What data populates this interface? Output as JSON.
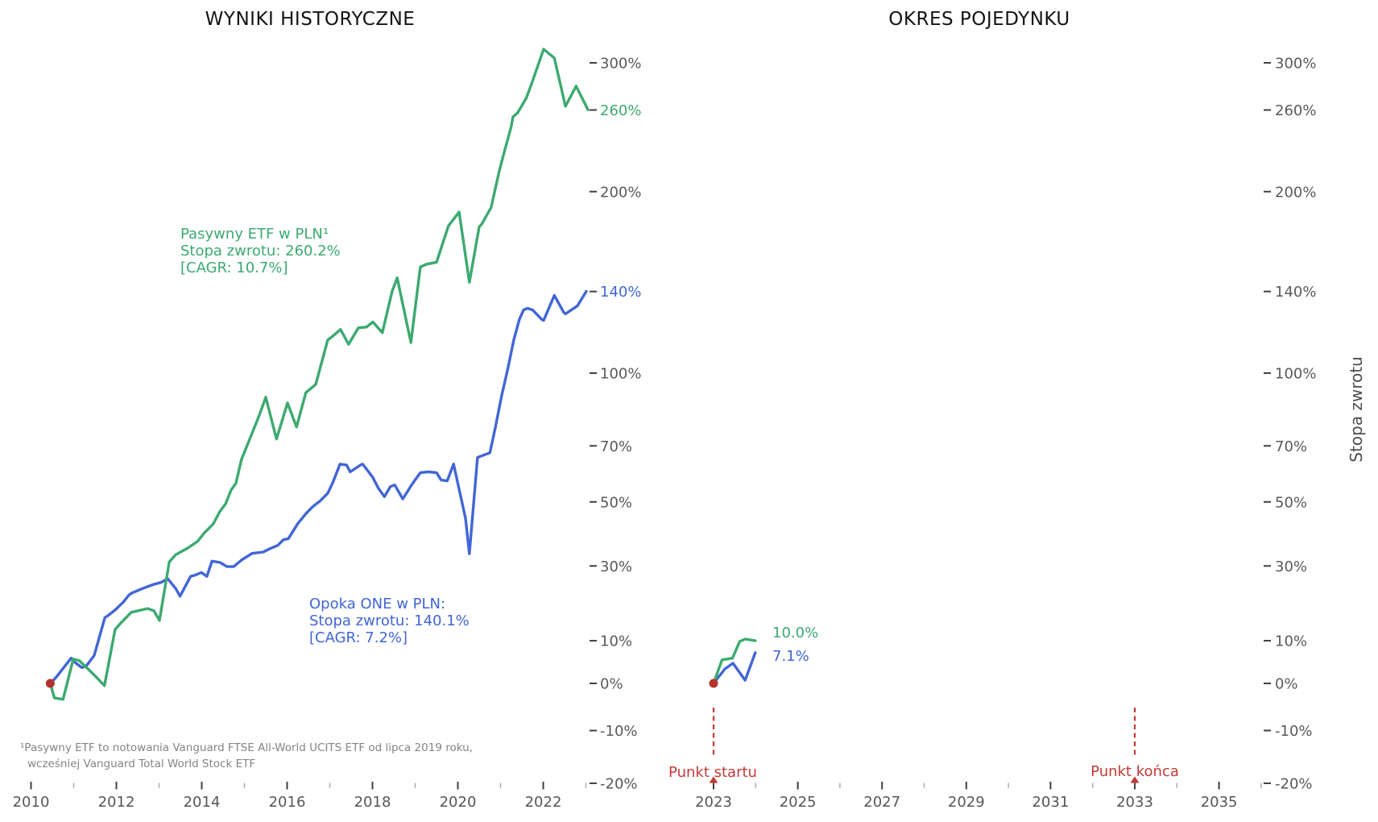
{
  "chart_data": [
    {
      "type": "line",
      "title": "WYNIKI HISTORYCZNE",
      "y_scale": "log10(1 + r/100), shared by both panels",
      "x_range": [
        2009.7,
        2023.3
      ],
      "y_range_pct": [
        -20.5,
        316
      ],
      "grid": false,
      "x_axis": {
        "major_ticks": [
          2010,
          2012,
          2014,
          2016,
          2018,
          2020,
          2022
        ],
        "major_labels": [
          "2010",
          "2012",
          "2014",
          "2016",
          "2018",
          "2020",
          "2022"
        ],
        "minor_ticks": [
          2011,
          2013,
          2015,
          2017,
          2019,
          2021,
          2023
        ]
      },
      "y_axis": {
        "side": "right",
        "ticks": [
          {
            "pct": 300,
            "label": "300%",
            "color": "#595959"
          },
          {
            "pct": 260,
            "label": "260%",
            "color": "#3caa70"
          },
          {
            "pct": 200,
            "label": "200%",
            "color": "#595959"
          },
          {
            "pct": 140,
            "label": "140%",
            "color": "#4166d5"
          },
          {
            "pct": 100,
            "label": "100%",
            "color": "#595959"
          },
          {
            "pct": 70,
            "label": "70%",
            "color": "#595959"
          },
          {
            "pct": 50,
            "label": "50%",
            "color": "#595959"
          },
          {
            "pct": 30,
            "label": "30%",
            "color": "#595959"
          },
          {
            "pct": 10,
            "label": "10%",
            "color": "#595959"
          },
          {
            "pct": 0,
            "label": "0%",
            "color": "#595959"
          },
          {
            "pct": -10,
            "label": "-10%",
            "color": "#595959"
          },
          {
            "pct": -20,
            "label": "-20%",
            "color": "#595959"
          }
        ]
      },
      "start_dot": {
        "year": 2010.45,
        "pct": 0,
        "color": "#b6322d"
      },
      "annotations": {
        "green": {
          "line1": "Pasywny ETF w PLN¹",
          "line2": "Stopa zwrotu: 260.2%",
          "line3": "[CAGR: 10.7%]"
        },
        "blue": {
          "line1": "Opoka ONE w PLN:",
          "line2": "Stopa zwrotu: 140.1%",
          "line3": "[CAGR: 7.2%]"
        }
      },
      "footnote": {
        "line1": "¹Pasywny ETF to notowania Vanguard FTSE All-World UCITS ETF od lipca 2019 roku,",
        "line2": "wcześniej Vanguard Total World Stock ETF"
      },
      "series": [
        {
          "name": "Opoka ONE w PLN",
          "color": "#4166d5",
          "total_return_pct": 140.1,
          "cagr_pct": 7.2,
          "points": [
            [
              2010.45,
              0
            ],
            [
              2010.59,
              1.4
            ],
            [
              2010.94,
              5.8
            ],
            [
              2011.03,
              4.8
            ],
            [
              2011.19,
              3.6
            ],
            [
              2011.29,
              3.9
            ],
            [
              2011.48,
              6.4
            ],
            [
              2011.73,
              15.8
            ],
            [
              2011.82,
              16.5
            ],
            [
              2011.98,
              17.9
            ],
            [
              2012.17,
              20.0
            ],
            [
              2012.29,
              21.8
            ],
            [
              2012.35,
              22.3
            ],
            [
              2012.61,
              23.6
            ],
            [
              2012.86,
              24.7
            ],
            [
              2013.05,
              25.3
            ],
            [
              2013.2,
              26.4
            ],
            [
              2013.39,
              23.6
            ],
            [
              2013.49,
              21.5
            ],
            [
              2013.74,
              27.0
            ],
            [
              2013.83,
              27.3
            ],
            [
              2013.99,
              28.1
            ],
            [
              2014.12,
              27.0
            ],
            [
              2014.24,
              31.4
            ],
            [
              2014.43,
              31.0
            ],
            [
              2014.59,
              29.8
            ],
            [
              2014.75,
              29.8
            ],
            [
              2014.93,
              31.7
            ],
            [
              2015.18,
              33.7
            ],
            [
              2015.44,
              34.1
            ],
            [
              2015.56,
              34.9
            ],
            [
              2015.78,
              36.1
            ],
            [
              2015.91,
              37.8
            ],
            [
              2016.03,
              38.2
            ],
            [
              2016.25,
              42.9
            ],
            [
              2016.44,
              46.1
            ],
            [
              2016.6,
              48.4
            ],
            [
              2016.78,
              50.4
            ],
            [
              2016.95,
              52.9
            ],
            [
              2017.07,
              56.6
            ],
            [
              2017.24,
              63.2
            ],
            [
              2017.39,
              62.9
            ],
            [
              2017.48,
              60.4
            ],
            [
              2017.72,
              62.9
            ],
            [
              2017.77,
              63.2
            ],
            [
              2018.0,
              58.6
            ],
            [
              2018.14,
              54.6
            ],
            [
              2018.28,
              51.8
            ],
            [
              2018.42,
              55.2
            ],
            [
              2018.52,
              55.8
            ],
            [
              2018.71,
              51.0
            ],
            [
              2018.93,
              56.1
            ],
            [
              2019.12,
              60.1
            ],
            [
              2019.31,
              60.4
            ],
            [
              2019.5,
              60.1
            ],
            [
              2019.61,
              57.5
            ],
            [
              2019.75,
              57.2
            ],
            [
              2019.9,
              63.2
            ],
            [
              2020.18,
              44.6
            ],
            [
              2020.27,
              33.6
            ],
            [
              2020.46,
              65.6
            ],
            [
              2020.5,
              65.9
            ],
            [
              2020.75,
              67.4
            ],
            [
              2020.88,
              77.2
            ],
            [
              2021.03,
              90.5
            ],
            [
              2021.16,
              101.1
            ],
            [
              2021.31,
              115.3
            ],
            [
              2021.44,
              125.4
            ],
            [
              2021.54,
              130.3
            ],
            [
              2021.63,
              131.2
            ],
            [
              2021.75,
              130.3
            ],
            [
              2021.97,
              125.4
            ],
            [
              2022.01,
              125.0
            ],
            [
              2022.26,
              137.9
            ],
            [
              2022.48,
              129.1
            ],
            [
              2022.52,
              128.3
            ],
            [
              2022.8,
              132.4
            ],
            [
              2023.01,
              140.1
            ]
          ]
        },
        {
          "name": "Pasywny ETF w PLN",
          "color": "#3caa70",
          "total_return_pct": 260.2,
          "cagr_pct": 10.7,
          "points": [
            [
              2010.45,
              0
            ],
            [
              2010.55,
              -3.2
            ],
            [
              2010.75,
              -3.5
            ],
            [
              2010.99,
              5.6
            ],
            [
              2011.13,
              5.2
            ],
            [
              2011.26,
              4.0
            ],
            [
              2011.49,
              1.8
            ],
            [
              2011.72,
              -0.5
            ],
            [
              2011.97,
              12.8
            ],
            [
              2012.1,
              14.4
            ],
            [
              2012.35,
              17.2
            ],
            [
              2012.73,
              18.2
            ],
            [
              2012.88,
              17.6
            ],
            [
              2013.01,
              15.1
            ],
            [
              2013.24,
              31.2
            ],
            [
              2013.39,
              33.3
            ],
            [
              2013.67,
              35.3
            ],
            [
              2013.9,
              37.3
            ],
            [
              2014.05,
              39.8
            ],
            [
              2014.27,
              42.8
            ],
            [
              2014.42,
              46.7
            ],
            [
              2014.56,
              49.4
            ],
            [
              2014.69,
              54.1
            ],
            [
              2014.8,
              56.3
            ],
            [
              2014.93,
              64.9
            ],
            [
              2015.16,
              74.1
            ],
            [
              2015.35,
              82.1
            ],
            [
              2015.5,
              89.5
            ],
            [
              2015.75,
              72.6
            ],
            [
              2016.01,
              87.1
            ],
            [
              2016.22,
              77.3
            ],
            [
              2016.44,
              91.5
            ],
            [
              2016.67,
              95.0
            ],
            [
              2016.95,
              115.3
            ],
            [
              2017.05,
              116.9
            ],
            [
              2017.25,
              120.5
            ],
            [
              2017.44,
              113.3
            ],
            [
              2017.67,
              121.3
            ],
            [
              2017.86,
              121.7
            ],
            [
              2018.01,
              124.2
            ],
            [
              2018.23,
              118.9
            ],
            [
              2018.46,
              140.1
            ],
            [
              2018.58,
              147.4
            ],
            [
              2018.9,
              114.1
            ],
            [
              2019.12,
              153.5
            ],
            [
              2019.27,
              155.1
            ],
            [
              2019.5,
              156.2
            ],
            [
              2019.78,
              177.9
            ],
            [
              2020.03,
              186.6
            ],
            [
              2020.27,
              145.0
            ],
            [
              2020.5,
              177.3
            ],
            [
              2020.56,
              179.0
            ],
            [
              2020.78,
              189.6
            ],
            [
              2020.97,
              214.0
            ],
            [
              2021.07,
              225.8
            ],
            [
              2021.25,
              247.0
            ],
            [
              2021.29,
              254.5
            ],
            [
              2021.4,
              257.7
            ],
            [
              2021.6,
              269.5
            ],
            [
              2021.72,
              281.0
            ],
            [
              2022.01,
              312.4
            ],
            [
              2022.26,
              304.3
            ],
            [
              2022.52,
              263.0
            ],
            [
              2022.77,
              279.7
            ],
            [
              2023.05,
              260.2
            ]
          ]
        }
      ]
    },
    {
      "type": "line",
      "title": "OKRES POJEDYNKU",
      "ylabel": "Stopa zwrotu",
      "x_range": [
        2022.55,
        2035.9
      ],
      "grid": false,
      "x_axis": {
        "major_ticks": [
          2023,
          2025,
          2027,
          2029,
          2031,
          2033,
          2035
        ],
        "major_labels": [
          "2023",
          "2025",
          "2027",
          "2029",
          "2031",
          "2033",
          "2035"
        ],
        "minor_ticks": [
          2024,
          2026,
          2028,
          2030,
          2032,
          2034,
          2036
        ]
      },
      "y_axis": {
        "side": "right",
        "ticks": [
          {
            "pct": 300,
            "label": "300%",
            "color": "#595959"
          },
          {
            "pct": 260,
            "label": "260%",
            "color": "#595959"
          },
          {
            "pct": 200,
            "label": "200%",
            "color": "#595959"
          },
          {
            "pct": 140,
            "label": "140%",
            "color": "#595959"
          },
          {
            "pct": 100,
            "label": "100%",
            "color": "#595959"
          },
          {
            "pct": 70,
            "label": "70%",
            "color": "#595959"
          },
          {
            "pct": 50,
            "label": "50%",
            "color": "#595959"
          },
          {
            "pct": 30,
            "label": "30%",
            "color": "#595959"
          },
          {
            "pct": 10,
            "label": "10%",
            "color": "#595959"
          },
          {
            "pct": 0,
            "label": "0%",
            "color": "#595959"
          },
          {
            "pct": -10,
            "label": "-10%",
            "color": "#595959"
          },
          {
            "pct": -20,
            "label": "-20%",
            "color": "#595959"
          }
        ]
      },
      "start_dot": {
        "year": 2023.0,
        "pct": 0,
        "color": "#b6322d"
      },
      "vlines": [
        {
          "year": 2023.0,
          "label": "Punkt startu",
          "color": "#c23a36",
          "style": "dashed"
        },
        {
          "year": 2033.0,
          "label": "Punkt końca",
          "color": "#c23a36",
          "style": "dashed"
        }
      ],
      "series": [
        {
          "name": "Opoka ONE w PLN",
          "color": "#4166d5",
          "end_label": "7.1%",
          "points": [
            [
              2023.0,
              0
            ],
            [
              2023.27,
              3.3
            ],
            [
              2023.46,
              4.6
            ],
            [
              2023.75,
              0.7
            ],
            [
              2023.99,
              7.1
            ]
          ]
        },
        {
          "name": "Pasywny ETF w PLN",
          "color": "#3caa70",
          "end_label": "10.0%",
          "points": [
            [
              2023.0,
              0
            ],
            [
              2023.2,
              5.4
            ],
            [
              2023.45,
              5.8
            ],
            [
              2023.62,
              9.8
            ],
            [
              2023.75,
              10.4
            ],
            [
              2023.99,
              10.0
            ]
          ]
        }
      ]
    }
  ]
}
